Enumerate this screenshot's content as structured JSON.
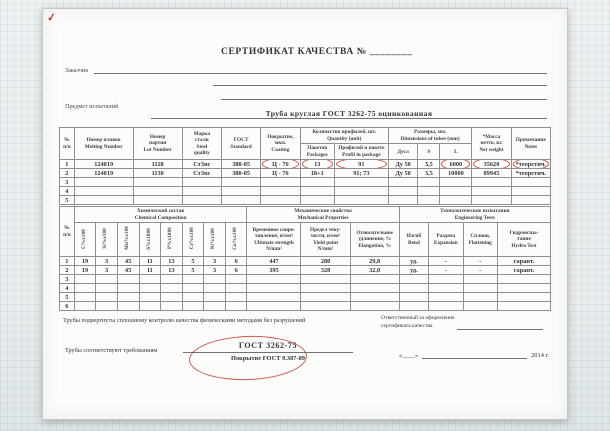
{
  "document": {
    "check_mark": "✓",
    "title": "СЕРТИФИКАТ  КАЧЕСТВА  №",
    "title_blank": "________",
    "customer_label": "Заказчик",
    "subject_label": "Предмет испытаний",
    "subject_value": "Труба круглая  ГОСТ 3262-75   оцинкованная"
  },
  "table1": {
    "h": {
      "num": "№\nп/п",
      "melting": "Номер плавок\nMelting Number",
      "lot": "Номер\nпартии\nLot Number",
      "steel": "Марка\nстали\nSteel\nquality",
      "gost": "ГОСТ\nStandard",
      "coating": "Покрытие,\nмкм.\nCoating",
      "quantity_group": "Количество профилей, шт.\nQuantity  (unit)",
      "packages": "Пакетов\nPackages",
      "profiles": "Профилей в пакете\nProfil  in package",
      "dims_group": "Размеры, мм.\nDimensions of tubes (mm)",
      "d": "Дусл",
      "s": "S",
      "l": "L",
      "mass": "*Масса\nнетто, кг.\nNet weight",
      "notes": "Примечание\nNotes"
    },
    "rows": [
      [
        "1",
        "124019",
        "1128",
        "Ст3пс",
        "380-05",
        "Ц - 76",
        "13",
        "91",
        "Ду 50",
        "3,5",
        "6000",
        "35620",
        "*теоретич."
      ],
      [
        "2",
        "124019",
        "1130",
        "Ст3пс",
        "380-05",
        "Ц - 76",
        "18+1",
        "91; 73",
        "Ду 50",
        "3,5",
        "10000",
        "89945",
        "*теоретич."
      ],
      [
        "3",
        "",
        "",
        "",
        "",
        "",
        "",
        "",
        "",
        "",
        "",
        "",
        ""
      ],
      [
        "4",
        "",
        "",
        "",
        "",
        "",
        "",
        "",
        "",
        "",
        "",
        "",
        ""
      ],
      [
        "5",
        "",
        "",
        "",
        "",
        "",
        "",
        "",
        "",
        "",
        "",
        "",
        ""
      ]
    ],
    "circled": [
      [
        0,
        5
      ],
      [
        0,
        6
      ],
      [
        0,
        7
      ],
      [
        0,
        10
      ],
      [
        0,
        11
      ],
      [
        0,
        12
      ]
    ]
  },
  "table2": {
    "h": {
      "num": "№\nп/п",
      "chem_group": "Химический состав\nChemical Composition",
      "chem": [
        "С%х100",
        "Si%х100",
        "Mn%х100",
        "S%х1000",
        "Р%х1000",
        "Cr%х100",
        "Ni%х100",
        "Cu%х100"
      ],
      "mech_group": "Механические  свойства\nMechanical Properties",
      "mech": [
        "Временное сопро-\nтивление, н/мм²\nUltimate  strength\nN/mm²",
        "Предел теку-\nчести, н/мм²\nYield point\nN/mm²",
        "Относительное\nудлинение, %\nElongation, %"
      ],
      "eng_group": "Технологические   испытания\nEngineering  Tests",
      "eng": [
        "Изгиб\nBend",
        "Раздача\nExpansion",
        "Сплющ.\nFlattening",
        "Гидроиспы-\nтание\nHydro Test"
      ]
    },
    "rows": [
      [
        "1",
        "19",
        "3",
        "45",
        "11",
        "13",
        "5",
        "3",
        "6",
        "447",
        "280",
        "29,8",
        "уд.",
        "-",
        "-",
        "гарант."
      ],
      [
        "2",
        "19",
        "3",
        "45",
        "11",
        "13",
        "5",
        "3",
        "6",
        "395",
        "328",
        "32,0",
        "уд.",
        "-",
        "-",
        "гарант."
      ],
      [
        "3",
        "",
        "",
        "",
        "",
        "",
        "",
        "",
        "",
        "",
        "",
        "",
        "",
        "",
        "",
        ""
      ],
      [
        "4",
        "",
        "",
        "",
        "",
        "",
        "",
        "",
        "",
        "",
        "",
        "",
        "",
        "",
        "",
        ""
      ],
      [
        "5",
        "",
        "",
        "",
        "",
        "",
        "",
        "",
        "",
        "",
        "",
        "",
        "",
        "",
        "",
        ""
      ],
      [
        "6",
        "",
        "",
        "",
        "",
        "",
        "",
        "",
        "",
        "",
        "",
        "",
        "",
        "",
        "",
        ""
      ]
    ],
    "circled": []
  },
  "footer": {
    "control_note": "Трубы подвергнуты сплошному  контролю качества  физическими методами без  разрушений",
    "responsible_label": "Ответственный за оформление\nсертификата качества",
    "requirements_label": "Трубы соответствуют требованиям",
    "gost_main": "ГОСТ 3262-75",
    "gost_coating": "Покрытие ГОСТ 9.307-89",
    "date_open_quote": "«____»",
    "date_year": "2014 г."
  }
}
